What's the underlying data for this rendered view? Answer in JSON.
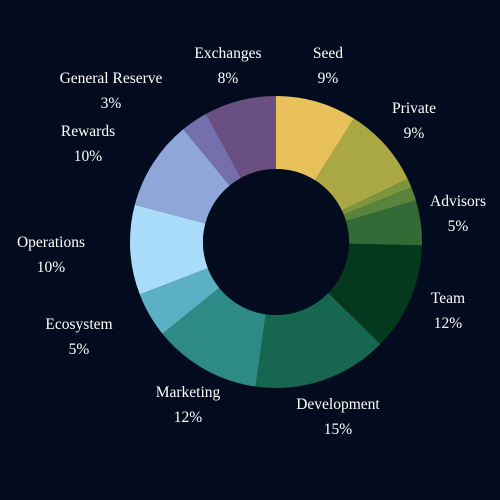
{
  "colors": {
    "background": "#030c1e",
    "hole": "#030c1e",
    "label_text": "#ffffff"
  },
  "chart_data": {
    "type": "pie",
    "variant": "donut",
    "start": "top, clockwise",
    "unit": "%",
    "slices": [
      {
        "label": "Seed",
        "value": 9,
        "value_text": "9%",
        "color": "#e8c15a"
      },
      {
        "label": "Private",
        "value": 9,
        "value_text": "9%",
        "color": "#a9a844"
      },
      {
        "label": "",
        "value": 1,
        "value_text": "",
        "color": "#7d963e"
      },
      {
        "label": "",
        "value": 1.5,
        "value_text": "",
        "color": "#5a833b"
      },
      {
        "label": "Advisors",
        "value": 5,
        "value_text": "5%",
        "color": "#336a35"
      },
      {
        "label": "Team",
        "value": 12,
        "value_text": "12%",
        "color": "#04391e"
      },
      {
        "label": "Development",
        "value": 15,
        "value_text": "15%",
        "color": "#176650"
      },
      {
        "label": "Marketing",
        "value": 12,
        "value_text": "12%",
        "color": "#2d8a86"
      },
      {
        "label": "Ecosystem",
        "value": 5,
        "value_text": "5%",
        "color": "#5bb0c4"
      },
      {
        "label": "Operations",
        "value": 10,
        "value_text": "10%",
        "color": "#a9dcf8"
      },
      {
        "label": "Rewards",
        "value": 10,
        "value_text": "10%",
        "color": "#8fa6d8"
      },
      {
        "label": "General Reserve",
        "value": 3,
        "value_text": "3%",
        "color": "#7570ac"
      },
      {
        "label": "Exchanges",
        "value": 8,
        "value_text": "8%",
        "color": "#6a4f82"
      }
    ]
  }
}
